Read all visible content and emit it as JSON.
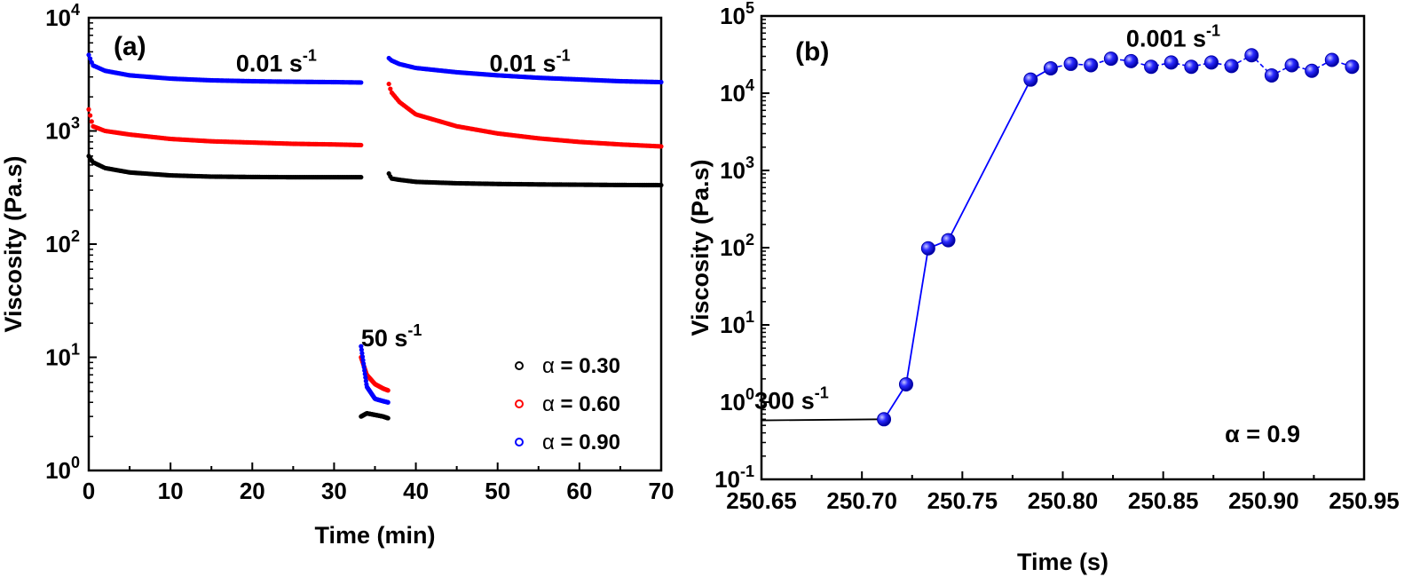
{
  "figure": {
    "panel_a": {
      "label": "(a)",
      "xlabel": "Time (min)",
      "ylabel": "Viscosity (Pa.s)",
      "x_ticks": [
        "0",
        "10",
        "20",
        "30",
        "40",
        "50",
        "60",
        "70"
      ],
      "y_tick_exponents": [
        "0",
        "1",
        "2",
        "3",
        "4"
      ],
      "y_tick_base": "10",
      "annotations": [
        {
          "text": "0.01 s",
          "sup": "-1",
          "x": 18,
          "y": 4000
        },
        {
          "text": "0.01 s",
          "sup": "-1",
          "x": 49,
          "y": 4000
        },
        {
          "text": "50 s",
          "sup": "-1",
          "x": 33.3,
          "y": 15
        }
      ],
      "legend": {
        "placement": "bottom-right",
        "items": [
          {
            "symbol": "α",
            "text": "=  0.30",
            "color": "#000000"
          },
          {
            "symbol": "α",
            "text": " = 0.60",
            "color": "#ff0000"
          },
          {
            "symbol": "α",
            "text": " = 0.90",
            "color": "#0000ff"
          }
        ]
      }
    },
    "panel_b": {
      "label": "(b)",
      "xlabel": "Time (s)",
      "ylabel": "Viscosity (Pa.s)",
      "x_ticks": [
        "250.65",
        "250.70",
        "250.75",
        "250.80",
        "250.85",
        "250.90",
        "250.95"
      ],
      "y_tick_exponents": [
        "-1",
        "0",
        "1",
        "2",
        "3",
        "4",
        "5"
      ],
      "y_tick_base": "10",
      "annotations": [
        {
          "text": "0.001 s",
          "sup": "-1",
          "x": 250.855,
          "y": 40000
        },
        {
          "text": "300 s",
          "sup": "-1",
          "x": 250.665,
          "y": 0.82
        }
      ],
      "note": "α = 0.9"
    }
  },
  "chart_data": [
    {
      "type": "scatter",
      "title": "",
      "xlabel": "Time (min)",
      "ylabel": "Viscosity (Pa.s)",
      "xlim": [
        0,
        70
      ],
      "ylim": [
        1,
        10000
      ],
      "yscale": "log",
      "grid": false,
      "legend_position": "bottom-right",
      "segments": [
        "0.01 s-1 (0-33.3 min)",
        "50 s-1 (33.3-36.7 min)",
        "0.01 s-1 (36.7-70 min)"
      ],
      "series": [
        {
          "name": "α = 0.30",
          "color": "#000000",
          "x": [
            0,
            0.5,
            2,
            5,
            10,
            15,
            20,
            25,
            30,
            33.3,
            33.3,
            34,
            35,
            36,
            36.6,
            36.7,
            37,
            38,
            40,
            45,
            50,
            55,
            60,
            65,
            70
          ],
          "y": [
            600,
            530,
            470,
            430,
            405,
            395,
            392,
            390,
            390,
            390,
            3.0,
            3.2,
            3.1,
            3.0,
            2.9,
            420,
            380,
            370,
            355,
            345,
            340,
            337,
            335,
            333,
            332
          ]
        },
        {
          "name": "α = 0.60",
          "color": "#ff0000",
          "x": [
            0,
            0.5,
            2,
            5,
            10,
            15,
            20,
            25,
            30,
            33.3,
            33.3,
            34,
            35,
            36,
            36.6,
            36.7,
            37,
            38,
            40,
            45,
            50,
            55,
            60,
            65,
            70
          ],
          "y": [
            1550,
            1100,
            1000,
            930,
            850,
            810,
            790,
            770,
            760,
            750,
            10,
            7.0,
            5.8,
            5.3,
            5.1,
            2600,
            2200,
            1800,
            1400,
            1100,
            950,
            860,
            800,
            760,
            730
          ]
        },
        {
          "name": "α = 0.90",
          "color": "#0000ff",
          "x": [
            0,
            0.5,
            2,
            5,
            10,
            15,
            20,
            25,
            30,
            33.3,
            33.3,
            34,
            35,
            36,
            36.6,
            36.7,
            37,
            38,
            40,
            45,
            50,
            55,
            60,
            65,
            70
          ],
          "y": [
            4700,
            3800,
            3400,
            3100,
            2900,
            2800,
            2750,
            2720,
            2700,
            2680,
            12.5,
            5.5,
            4.3,
            4.1,
            4.0,
            4400,
            4200,
            3900,
            3600,
            3300,
            3100,
            2950,
            2850,
            2750,
            2700
          ]
        }
      ]
    },
    {
      "type": "line",
      "title": "",
      "xlabel": "Time (s)",
      "ylabel": "Viscosity (Pa.s)",
      "xlim": [
        250.65,
        250.95
      ],
      "ylim": [
        0.1,
        100000
      ],
      "yscale": "log",
      "grid": false,
      "shear_rate_line": {
        "x": [
          250.65,
          250.71
        ],
        "y": [
          0.58,
          0.6
        ]
      },
      "series": [
        {
          "name": "α = 0.9",
          "color": "#0000ff",
          "x": [
            250.711,
            250.722,
            250.733,
            250.743,
            250.784,
            250.794,
            250.804,
            250.814,
            250.824,
            250.834,
            250.844,
            250.854,
            250.864,
            250.874,
            250.884,
            250.894,
            250.904,
            250.914,
            250.924,
            250.934,
            250.944
          ],
          "y": [
            0.6,
            1.7,
            98,
            125,
            15000,
            21000,
            24000,
            23000,
            28000,
            26000,
            22000,
            25000,
            22000,
            25000,
            22500,
            31000,
            17000,
            23000,
            19500,
            27000,
            22000
          ]
        }
      ]
    }
  ]
}
